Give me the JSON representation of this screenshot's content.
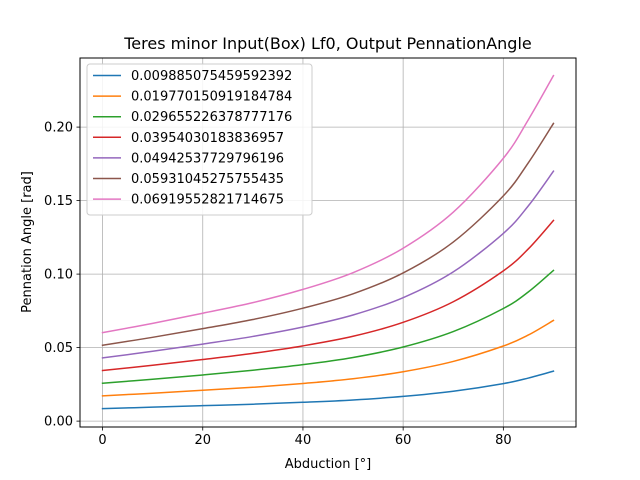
{
  "chart_data": {
    "type": "line",
    "title": "Teres minor Input(Box) Lf0, Output PennationAngle",
    "xlabel": "Abduction [°]",
    "ylabel": "Pennation Angle [rad]",
    "xlim": [
      -4.5,
      94.5
    ],
    "ylim": [
      -0.004,
      0.247
    ],
    "xticks": [
      0,
      20,
      40,
      60,
      80
    ],
    "xtick_labels": [
      "0",
      "20",
      "40",
      "60",
      "80"
    ],
    "yticks": [
      0.0,
      0.05,
      0.1,
      0.15,
      0.2
    ],
    "ytick_labels": [
      "0.00",
      "0.05",
      "0.10",
      "0.15",
      "0.20"
    ],
    "grid": true,
    "legend_position": "upper left",
    "x": [
      0,
      10,
      20,
      30,
      40,
      50,
      60,
      70,
      80,
      85,
      90
    ],
    "series": [
      {
        "name": "0.009885075459592392",
        "color": "#1f77b4",
        "values": [
          0.0085,
          0.0095,
          0.0105,
          0.0115,
          0.0128,
          0.0144,
          0.0168,
          0.0203,
          0.0255,
          0.0293,
          0.034
        ]
      },
      {
        "name": "0.019770150919184784",
        "color": "#ff7f0e",
        "values": [
          0.0172,
          0.019,
          0.021,
          0.023,
          0.0256,
          0.0288,
          0.0336,
          0.0406,
          0.0511,
          0.0586,
          0.0685
        ]
      },
      {
        "name": "0.029655226378777176",
        "color": "#2ca02c",
        "values": [
          0.0258,
          0.0285,
          0.0314,
          0.0346,
          0.0384,
          0.0433,
          0.0504,
          0.0609,
          0.0766,
          0.0879,
          0.1025
        ]
      },
      {
        "name": "0.03954030183836957",
        "color": "#d62728",
        "values": [
          0.0344,
          0.038,
          0.0419,
          0.0461,
          0.0512,
          0.0577,
          0.0672,
          0.0812,
          0.1022,
          0.1172,
          0.1365
        ]
      },
      {
        "name": "0.04942537729796196",
        "color": "#9467bd",
        "values": [
          0.043,
          0.0475,
          0.0524,
          0.0576,
          0.064,
          0.0722,
          0.084,
          0.1015,
          0.1277,
          0.1465,
          0.17
        ]
      },
      {
        "name": "0.05931045275755435",
        "color": "#8c564b",
        "values": [
          0.0516,
          0.057,
          0.0629,
          0.0691,
          0.0768,
          0.0866,
          0.1008,
          0.1218,
          0.1532,
          0.1758,
          0.2025
        ]
      },
      {
        "name": "0.06919552821714675",
        "color": "#e377c2",
        "values": [
          0.0602,
          0.0665,
          0.0734,
          0.0806,
          0.0896,
          0.101,
          0.1176,
          0.1421,
          0.1788,
          0.2051,
          0.235
        ]
      }
    ]
  }
}
